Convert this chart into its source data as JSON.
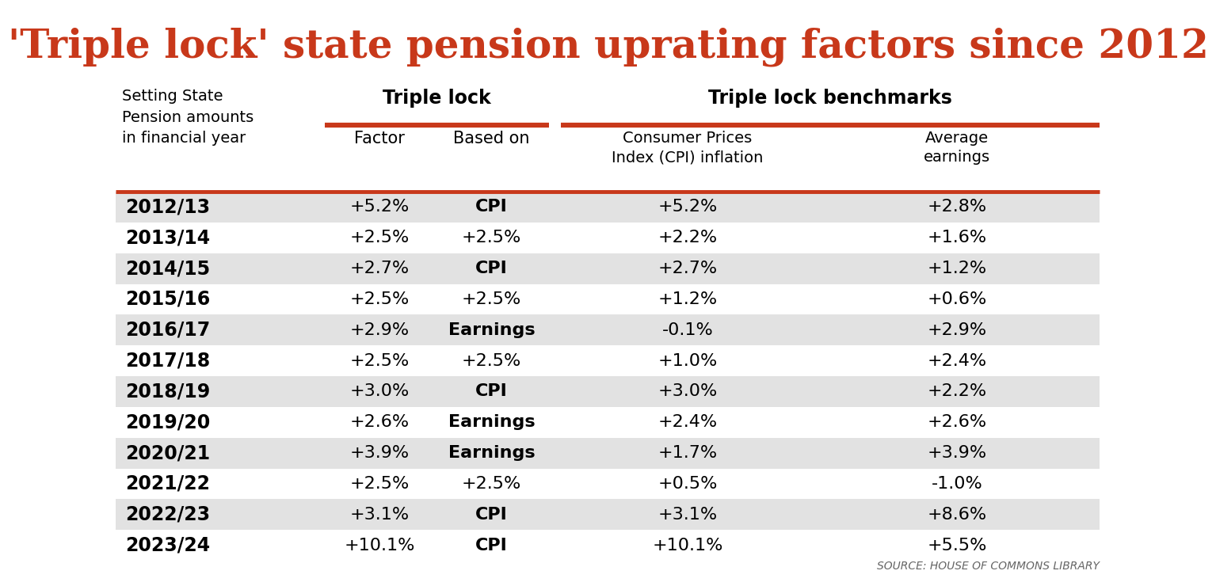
{
  "title": "'Triple lock' state pension uprating factors since 2012",
  "title_color": "#c8381a",
  "background_color": "#ffffff",
  "group1_header": "Triple lock",
  "group2_header": "Triple lock benchmarks",
  "col_headers": [
    "Factor",
    "Based on",
    "Consumer Prices\nIndex (CPI) inflation",
    "Average\nearnings"
  ],
  "left_header": "Setting State\nPension amounts\nin financial year",
  "years": [
    "2012/13",
    "2013/14",
    "2014/15",
    "2015/16",
    "2016/17",
    "2017/18",
    "2018/19",
    "2019/20",
    "2020/21",
    "2021/22",
    "2022/23",
    "2023/24"
  ],
  "factor": [
    "+5.2%",
    "+2.5%",
    "+2.7%",
    "+2.5%",
    "+2.9%",
    "+2.5%",
    "+3.0%",
    "+2.6%",
    "+3.9%",
    "+2.5%",
    "+3.1%",
    "+10.1%"
  ],
  "based_on": [
    "CPI",
    "+2.5%",
    "CPI",
    "+2.5%",
    "Earnings",
    "+2.5%",
    "CPI",
    "Earnings",
    "Earnings",
    "+2.5%",
    "CPI",
    "CPI"
  ],
  "based_on_bold": [
    true,
    false,
    true,
    false,
    true,
    false,
    true,
    true,
    true,
    false,
    true,
    true
  ],
  "cpi": [
    "+5.2%",
    "+2.2%",
    "+2.7%",
    "+1.2%",
    "-0.1%",
    "+1.0%",
    "+3.0%",
    "+2.4%",
    "+1.7%",
    "+0.5%",
    "+3.1%",
    "+10.1%"
  ],
  "earnings": [
    "+2.8%",
    "+1.6%",
    "+1.2%",
    "+0.6%",
    "+2.9%",
    "+2.4%",
    "+2.2%",
    "+2.6%",
    "+3.9%",
    "-1.0%",
    "+8.6%",
    "+5.5%"
  ],
  "shaded_rows": [
    0,
    2,
    4,
    6,
    8,
    10
  ],
  "row_bg_shaded": "#e2e2e2",
  "row_bg_white": "#ffffff",
  "accent_color": "#c8381a",
  "sep_color": "#c8381a",
  "source_text": "SOURCE: HOUSE OF COMMONS LIBRARY",
  "title_fontsize": 36,
  "header_fontsize": 17,
  "subheader_fontsize": 15,
  "data_fontsize": 16,
  "year_fontsize": 17
}
